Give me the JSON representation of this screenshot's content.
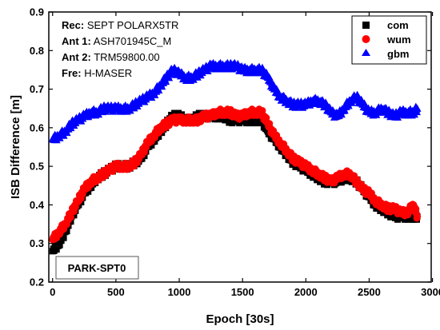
{
  "chart_data": {
    "type": "scatter",
    "xlabel": "Epoch [30s]",
    "ylabel": "ISB Difference [m]",
    "xlim": [
      -30,
      2990
    ],
    "ylim": [
      0.2,
      0.9
    ],
    "xticks": [
      0,
      500,
      1000,
      1500,
      2000,
      2500,
      3000
    ],
    "yticks": [
      0.2,
      0.3,
      0.4,
      0.5,
      0.6,
      0.7,
      0.8,
      0.9
    ],
    "xtick_labels": [
      "0",
      "500",
      "1000",
      "1500",
      "2000",
      "2500",
      "3000"
    ],
    "ytick_labels": [
      "0.2",
      "0.3",
      "0.4",
      "0.5",
      "0.6",
      "0.7",
      "0.8",
      "0.9"
    ],
    "info_box": [
      {
        "key": "Rec:",
        "value": "SEPT POLARX5TR"
      },
      {
        "key": "Ant 1:",
        "value": "ASH701945C_M"
      },
      {
        "key": "Ant 2:",
        "value": "TRM59800.00"
      },
      {
        "key": "Fre:",
        "value": "H-MASER"
      }
    ],
    "station_label": "PARK-SPT0",
    "legend_position": "top-right",
    "series": [
      {
        "name": "com",
        "color": "#000000",
        "marker": "square",
        "x": [
          0,
          50,
          100,
          150,
          200,
          250,
          300,
          350,
          400,
          450,
          500,
          550,
          600,
          650,
          700,
          750,
          800,
          850,
          900,
          950,
          1000,
          1050,
          1100,
          1150,
          1200,
          1250,
          1300,
          1350,
          1400,
          1450,
          1500,
          1550,
          1600,
          1650,
          1700,
          1750,
          1800,
          1850,
          1900,
          1950,
          2000,
          2050,
          2100,
          2150,
          2200,
          2250,
          2300,
          2350,
          2400,
          2450,
          2500,
          2550,
          2600,
          2650,
          2700,
          2750,
          2800,
          2850,
          2880
        ],
        "y": [
          0.28,
          0.3,
          0.33,
          0.37,
          0.4,
          0.43,
          0.45,
          0.47,
          0.48,
          0.49,
          0.5,
          0.5,
          0.5,
          0.51,
          0.52,
          0.55,
          0.57,
          0.59,
          0.61,
          0.63,
          0.63,
          0.62,
          0.62,
          0.63,
          0.63,
          0.63,
          0.63,
          0.63,
          0.62,
          0.62,
          0.62,
          0.62,
          0.62,
          0.62,
          0.59,
          0.57,
          0.55,
          0.53,
          0.51,
          0.5,
          0.49,
          0.48,
          0.47,
          0.46,
          0.46,
          0.46,
          0.47,
          0.47,
          0.46,
          0.44,
          0.42,
          0.4,
          0.39,
          0.38,
          0.37,
          0.37,
          0.37,
          0.37,
          0.37
        ]
      },
      {
        "name": "wum",
        "color": "#ff0000",
        "marker": "circle",
        "x": [
          0,
          50,
          100,
          150,
          200,
          250,
          300,
          350,
          400,
          450,
          500,
          550,
          600,
          650,
          700,
          750,
          800,
          850,
          900,
          950,
          1000,
          1050,
          1100,
          1150,
          1200,
          1250,
          1300,
          1350,
          1400,
          1450,
          1500,
          1550,
          1600,
          1650,
          1700,
          1750,
          1800,
          1850,
          1900,
          1950,
          2000,
          2050,
          2100,
          2150,
          2200,
          2250,
          2300,
          2350,
          2400,
          2450,
          2500,
          2550,
          2600,
          2650,
          2700,
          2750,
          2800,
          2850,
          2880
        ],
        "y": [
          0.31,
          0.33,
          0.35,
          0.38,
          0.41,
          0.44,
          0.46,
          0.47,
          0.48,
          0.49,
          0.5,
          0.5,
          0.5,
          0.51,
          0.53,
          0.56,
          0.58,
          0.6,
          0.61,
          0.62,
          0.62,
          0.62,
          0.62,
          0.62,
          0.63,
          0.63,
          0.64,
          0.64,
          0.64,
          0.63,
          0.63,
          0.64,
          0.64,
          0.64,
          0.61,
          0.58,
          0.56,
          0.54,
          0.52,
          0.51,
          0.5,
          0.49,
          0.48,
          0.47,
          0.46,
          0.47,
          0.48,
          0.48,
          0.46,
          0.44,
          0.43,
          0.41,
          0.4,
          0.39,
          0.39,
          0.38,
          0.38,
          0.4,
          0.37
        ]
      },
      {
        "name": "gbm",
        "color": "#0000ff",
        "marker": "triangle",
        "x": [
          0,
          50,
          100,
          150,
          200,
          250,
          300,
          350,
          400,
          450,
          500,
          550,
          600,
          650,
          700,
          750,
          800,
          850,
          900,
          950,
          1000,
          1050,
          1100,
          1150,
          1200,
          1250,
          1300,
          1350,
          1400,
          1450,
          1500,
          1550,
          1600,
          1650,
          1700,
          1750,
          1800,
          1850,
          1900,
          1950,
          2000,
          2050,
          2100,
          2150,
          2200,
          2250,
          2300,
          2350,
          2400,
          2450,
          2500,
          2550,
          2600,
          2650,
          2700,
          2750,
          2800,
          2850,
          2880
        ],
        "y": [
          0.57,
          0.58,
          0.59,
          0.61,
          0.62,
          0.63,
          0.64,
          0.64,
          0.65,
          0.65,
          0.65,
          0.65,
          0.65,
          0.66,
          0.67,
          0.68,
          0.69,
          0.71,
          0.73,
          0.75,
          0.74,
          0.73,
          0.73,
          0.74,
          0.75,
          0.76,
          0.76,
          0.76,
          0.76,
          0.76,
          0.75,
          0.75,
          0.75,
          0.75,
          0.73,
          0.7,
          0.68,
          0.67,
          0.66,
          0.66,
          0.66,
          0.67,
          0.67,
          0.66,
          0.64,
          0.63,
          0.65,
          0.67,
          0.68,
          0.66,
          0.64,
          0.64,
          0.65,
          0.64,
          0.63,
          0.64,
          0.64,
          0.64,
          0.65
        ]
      }
    ]
  }
}
